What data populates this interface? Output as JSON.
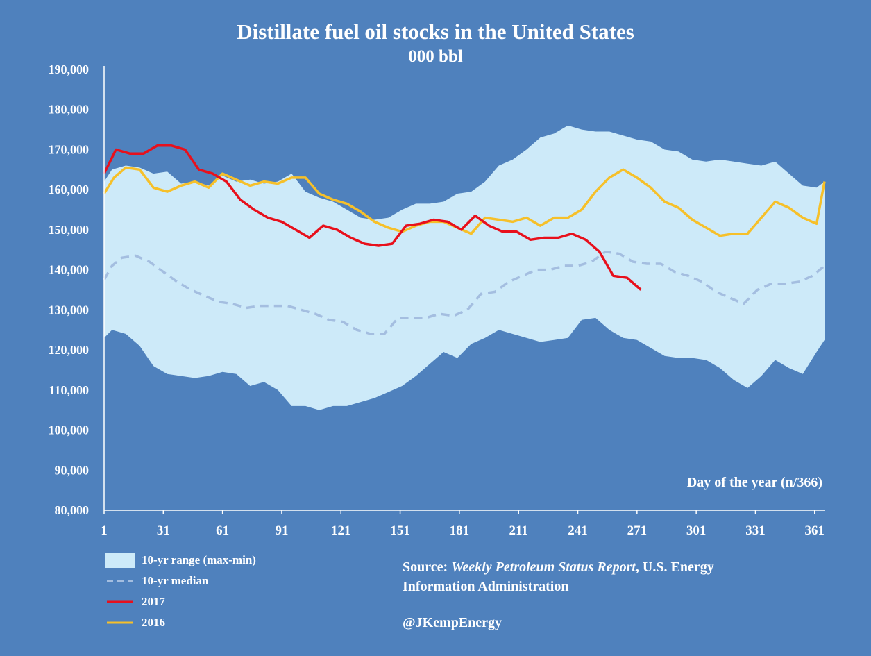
{
  "chart_data": {
    "type": "line",
    "title": "Distillate fuel oil stocks in the United States",
    "subtitle": "000 bbl",
    "xlabel": "Day of the year (n/366)",
    "ylabel": "",
    "xlim": [
      1,
      366
    ],
    "ylim": [
      80000,
      190000
    ],
    "y_ticks": [
      80000,
      90000,
      100000,
      110000,
      120000,
      130000,
      140000,
      150000,
      160000,
      170000,
      180000,
      190000
    ],
    "y_tick_labels": [
      "80,000",
      "90,000",
      "100,000",
      "110,000",
      "120,000",
      "130,000",
      "140,000",
      "150,000",
      "160,000",
      "170,000",
      "180,000",
      "190,000"
    ],
    "x_ticks": [
      1,
      31,
      61,
      91,
      121,
      151,
      181,
      211,
      241,
      271,
      301,
      331,
      361
    ],
    "x_tick_labels": [
      "1",
      "31",
      "61",
      "91",
      "121",
      "151",
      "181",
      "211",
      "241",
      "271",
      "301",
      "331",
      "361"
    ],
    "grid": false,
    "legend_position": "bottom-left",
    "colors": {
      "background": "#4f81bd",
      "range": "#cdeaf9",
      "median": "#a4bee0",
      "y2017": "#e8101c",
      "y2016": "#f6c02a"
    },
    "series": [
      {
        "name": "10-yr range (max-min)",
        "kind": "band",
        "x": [
          1,
          5,
          12,
          19,
          26,
          33,
          40,
          47,
          54,
          61,
          68,
          75,
          82,
          89,
          96,
          103,
          110,
          117,
          124,
          131,
          138,
          145,
          152,
          159,
          166,
          173,
          180,
          187,
          194,
          201,
          208,
          215,
          222,
          229,
          236,
          243,
          250,
          257,
          264,
          271,
          278,
          285,
          292,
          299,
          306,
          313,
          320,
          327,
          334,
          341,
          348,
          355,
          362,
          366
        ],
        "max": [
          162000,
          165000,
          166000,
          165500,
          164000,
          164500,
          161500,
          162000,
          161000,
          163500,
          162000,
          162500,
          161500,
          162000,
          164000,
          159500,
          158000,
          157000,
          155000,
          153000,
          152500,
          153000,
          155000,
          156500,
          156500,
          157000,
          159000,
          159500,
          162000,
          166000,
          167500,
          170000,
          173000,
          174000,
          176000,
          175000,
          174500,
          174500,
          173500,
          172500,
          172000,
          170000,
          169500,
          167500,
          167000,
          167500,
          167000,
          166500,
          166000,
          167000,
          164000,
          161000,
          160500,
          162000
        ],
        "min": [
          123000,
          125000,
          124000,
          121000,
          116000,
          114000,
          113500,
          113000,
          113500,
          114500,
          114000,
          111000,
          112000,
          110000,
          106000,
          106000,
          105000,
          106000,
          106000,
          107000,
          108000,
          109500,
          111000,
          113500,
          116500,
          119500,
          118000,
          121500,
          123000,
          125000,
          124000,
          123000,
          122000,
          122500,
          123000,
          127500,
          128000,
          125000,
          123000,
          122500,
          120500,
          118500,
          118000,
          118000,
          117500,
          115500,
          112500,
          110500,
          113500,
          117500,
          115500,
          114000,
          119500,
          122500
        ]
      },
      {
        "name": "10-yr median",
        "kind": "dashed",
        "x": [
          1,
          5,
          10,
          17,
          24,
          31,
          38,
          45,
          52,
          59,
          66,
          73,
          80,
          87,
          94,
          101,
          108,
          115,
          122,
          129,
          136,
          143,
          150,
          157,
          164,
          171,
          178,
          185,
          192,
          199,
          206,
          213,
          220,
          227,
          234,
          241,
          248,
          255,
          262,
          269,
          276,
          283,
          290,
          297,
          304,
          311,
          318,
          325,
          332,
          339,
          346,
          353,
          360,
          366
        ],
        "y": [
          137500,
          141000,
          143000,
          143500,
          142000,
          139500,
          137000,
          135000,
          133500,
          132000,
          131500,
          130500,
          131000,
          131000,
          131000,
          130000,
          129000,
          127500,
          127000,
          125000,
          124000,
          124000,
          128000,
          128000,
          128000,
          129000,
          128500,
          130000,
          134000,
          134500,
          137000,
          138500,
          140000,
          140000,
          141000,
          141000,
          142000,
          144500,
          144000,
          142000,
          141500,
          141500,
          139500,
          138500,
          137000,
          134500,
          133000,
          131500,
          135000,
          136500,
          136500,
          137000,
          138500,
          141000
        ]
      },
      {
        "name": "2017",
        "kind": "line",
        "x": [
          1,
          7,
          14,
          21,
          28,
          35,
          42,
          49,
          56,
          63,
          70,
          77,
          84,
          91,
          98,
          105,
          112,
          119,
          126,
          133,
          140,
          147,
          154,
          161,
          168,
          175,
          182,
          189,
          196,
          203,
          210,
          217,
          224,
          231,
          238,
          245,
          252,
          259,
          266,
          273
        ],
        "y": [
          164000,
          170000,
          169000,
          169000,
          171000,
          171000,
          170000,
          165000,
          164000,
          162000,
          157500,
          155000,
          153000,
          152000,
          150000,
          148000,
          151000,
          150000,
          148000,
          146500,
          146000,
          146500,
          151000,
          151500,
          152500,
          152000,
          150000,
          153500,
          151000,
          149500,
          149500,
          147500,
          148000,
          148000,
          149000,
          147500,
          144500,
          138500,
          138000,
          135000
        ]
      },
      {
        "name": "2016",
        "kind": "line",
        "x": [
          1,
          6,
          12,
          19,
          26,
          33,
          40,
          47,
          54,
          61,
          68,
          75,
          82,
          89,
          96,
          103,
          110,
          117,
          124,
          131,
          138,
          145,
          152,
          159,
          166,
          173,
          180,
          187,
          194,
          201,
          208,
          215,
          222,
          229,
          236,
          243,
          250,
          257,
          264,
          271,
          278,
          285,
          292,
          299,
          306,
          313,
          320,
          327,
          334,
          341,
          348,
          355,
          362,
          366
        ],
        "y": [
          159000,
          163000,
          165500,
          165000,
          160500,
          159500,
          161000,
          162000,
          160500,
          164000,
          162500,
          161000,
          162000,
          161500,
          163000,
          163000,
          159000,
          157500,
          156500,
          154500,
          152000,
          150500,
          149500,
          151000,
          152000,
          152000,
          150500,
          149000,
          153000,
          152500,
          152000,
          153000,
          151000,
          153000,
          153000,
          155000,
          159500,
          163000,
          165000,
          163000,
          160500,
          157000,
          155500,
          152500,
          150500,
          148500,
          149000,
          149000,
          153000,
          157000,
          155500,
          153000,
          151500,
          162000
        ]
      }
    ]
  },
  "source": {
    "prefix": "Source: ",
    "publication": "Weekly Petroleum Status Report",
    "suffix": ", U.S. Energy",
    "line2": "Information Administration"
  },
  "handle": "@JKempEnergy"
}
